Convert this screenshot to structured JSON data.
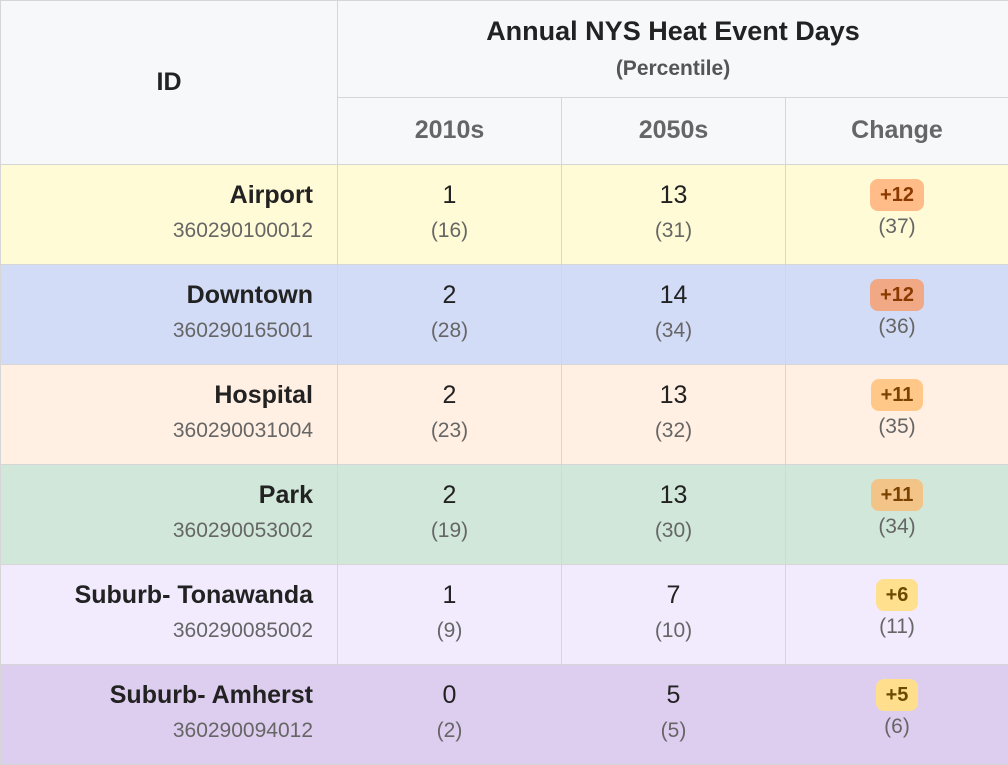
{
  "chart_data": {
    "type": "table",
    "header": {
      "id_label": "ID",
      "title": "Annual NYS Heat Event Days",
      "subtitle": "(Percentile)",
      "columns": [
        "2010s",
        "2050s",
        "Change"
      ]
    },
    "rows": [
      {
        "name": "Airport",
        "id": "360290100012",
        "y2010": "1",
        "p2010": "(16)",
        "y2050": "13",
        "p2050": "(31)",
        "change": "+12",
        "pchange": "(37)",
        "row_color": "#fffbd6",
        "badge_color": "#ffbb88",
        "badge_text_color": "#8a3a00"
      },
      {
        "name": "Downtown",
        "id": "360290165001",
        "y2010": "2",
        "p2010": "(28)",
        "y2050": "14",
        "p2050": "(34)",
        "change": "+12",
        "pchange": "(36)",
        "row_color": "#d3dcf6",
        "badge_color": "#f0a885",
        "badge_text_color": "#8a3a00"
      },
      {
        "name": "Hospital",
        "id": "360290031004",
        "y2010": "2",
        "p2010": "(23)",
        "y2050": "13",
        "p2050": "(32)",
        "change": "+11",
        "pchange": "(35)",
        "row_color": "#fff0e3",
        "badge_color": "#ffc888",
        "badge_text_color": "#7a4200"
      },
      {
        "name": "Park",
        "id": "360290053002",
        "y2010": "2",
        "p2010": "(19)",
        "y2050": "13",
        "p2050": "(30)",
        "change": "+11",
        "pchange": "(34)",
        "row_color": "#d0e7da",
        "badge_color": "#f2c488",
        "badge_text_color": "#7a4200"
      },
      {
        "name": "Suburb- Tonawanda",
        "id": "360290085002",
        "y2010": "1",
        "p2010": "(9)",
        "y2050": "7",
        "p2050": "(10)",
        "change": "+6",
        "pchange": "(11)",
        "row_color": "#f2eafd",
        "badge_color": "#ffe08f",
        "badge_text_color": "#6b4a00"
      },
      {
        "name": "Suburb- Amherst",
        "id": "360290094012",
        "y2010": "0",
        "p2010": "(2)",
        "y2050": "5",
        "p2050": "(5)",
        "change": "+5",
        "pchange": "(6)",
        "row_color": "#ddcdee",
        "badge_color": "#ffdf8e",
        "badge_text_color": "#6b4a00"
      }
    ]
  }
}
